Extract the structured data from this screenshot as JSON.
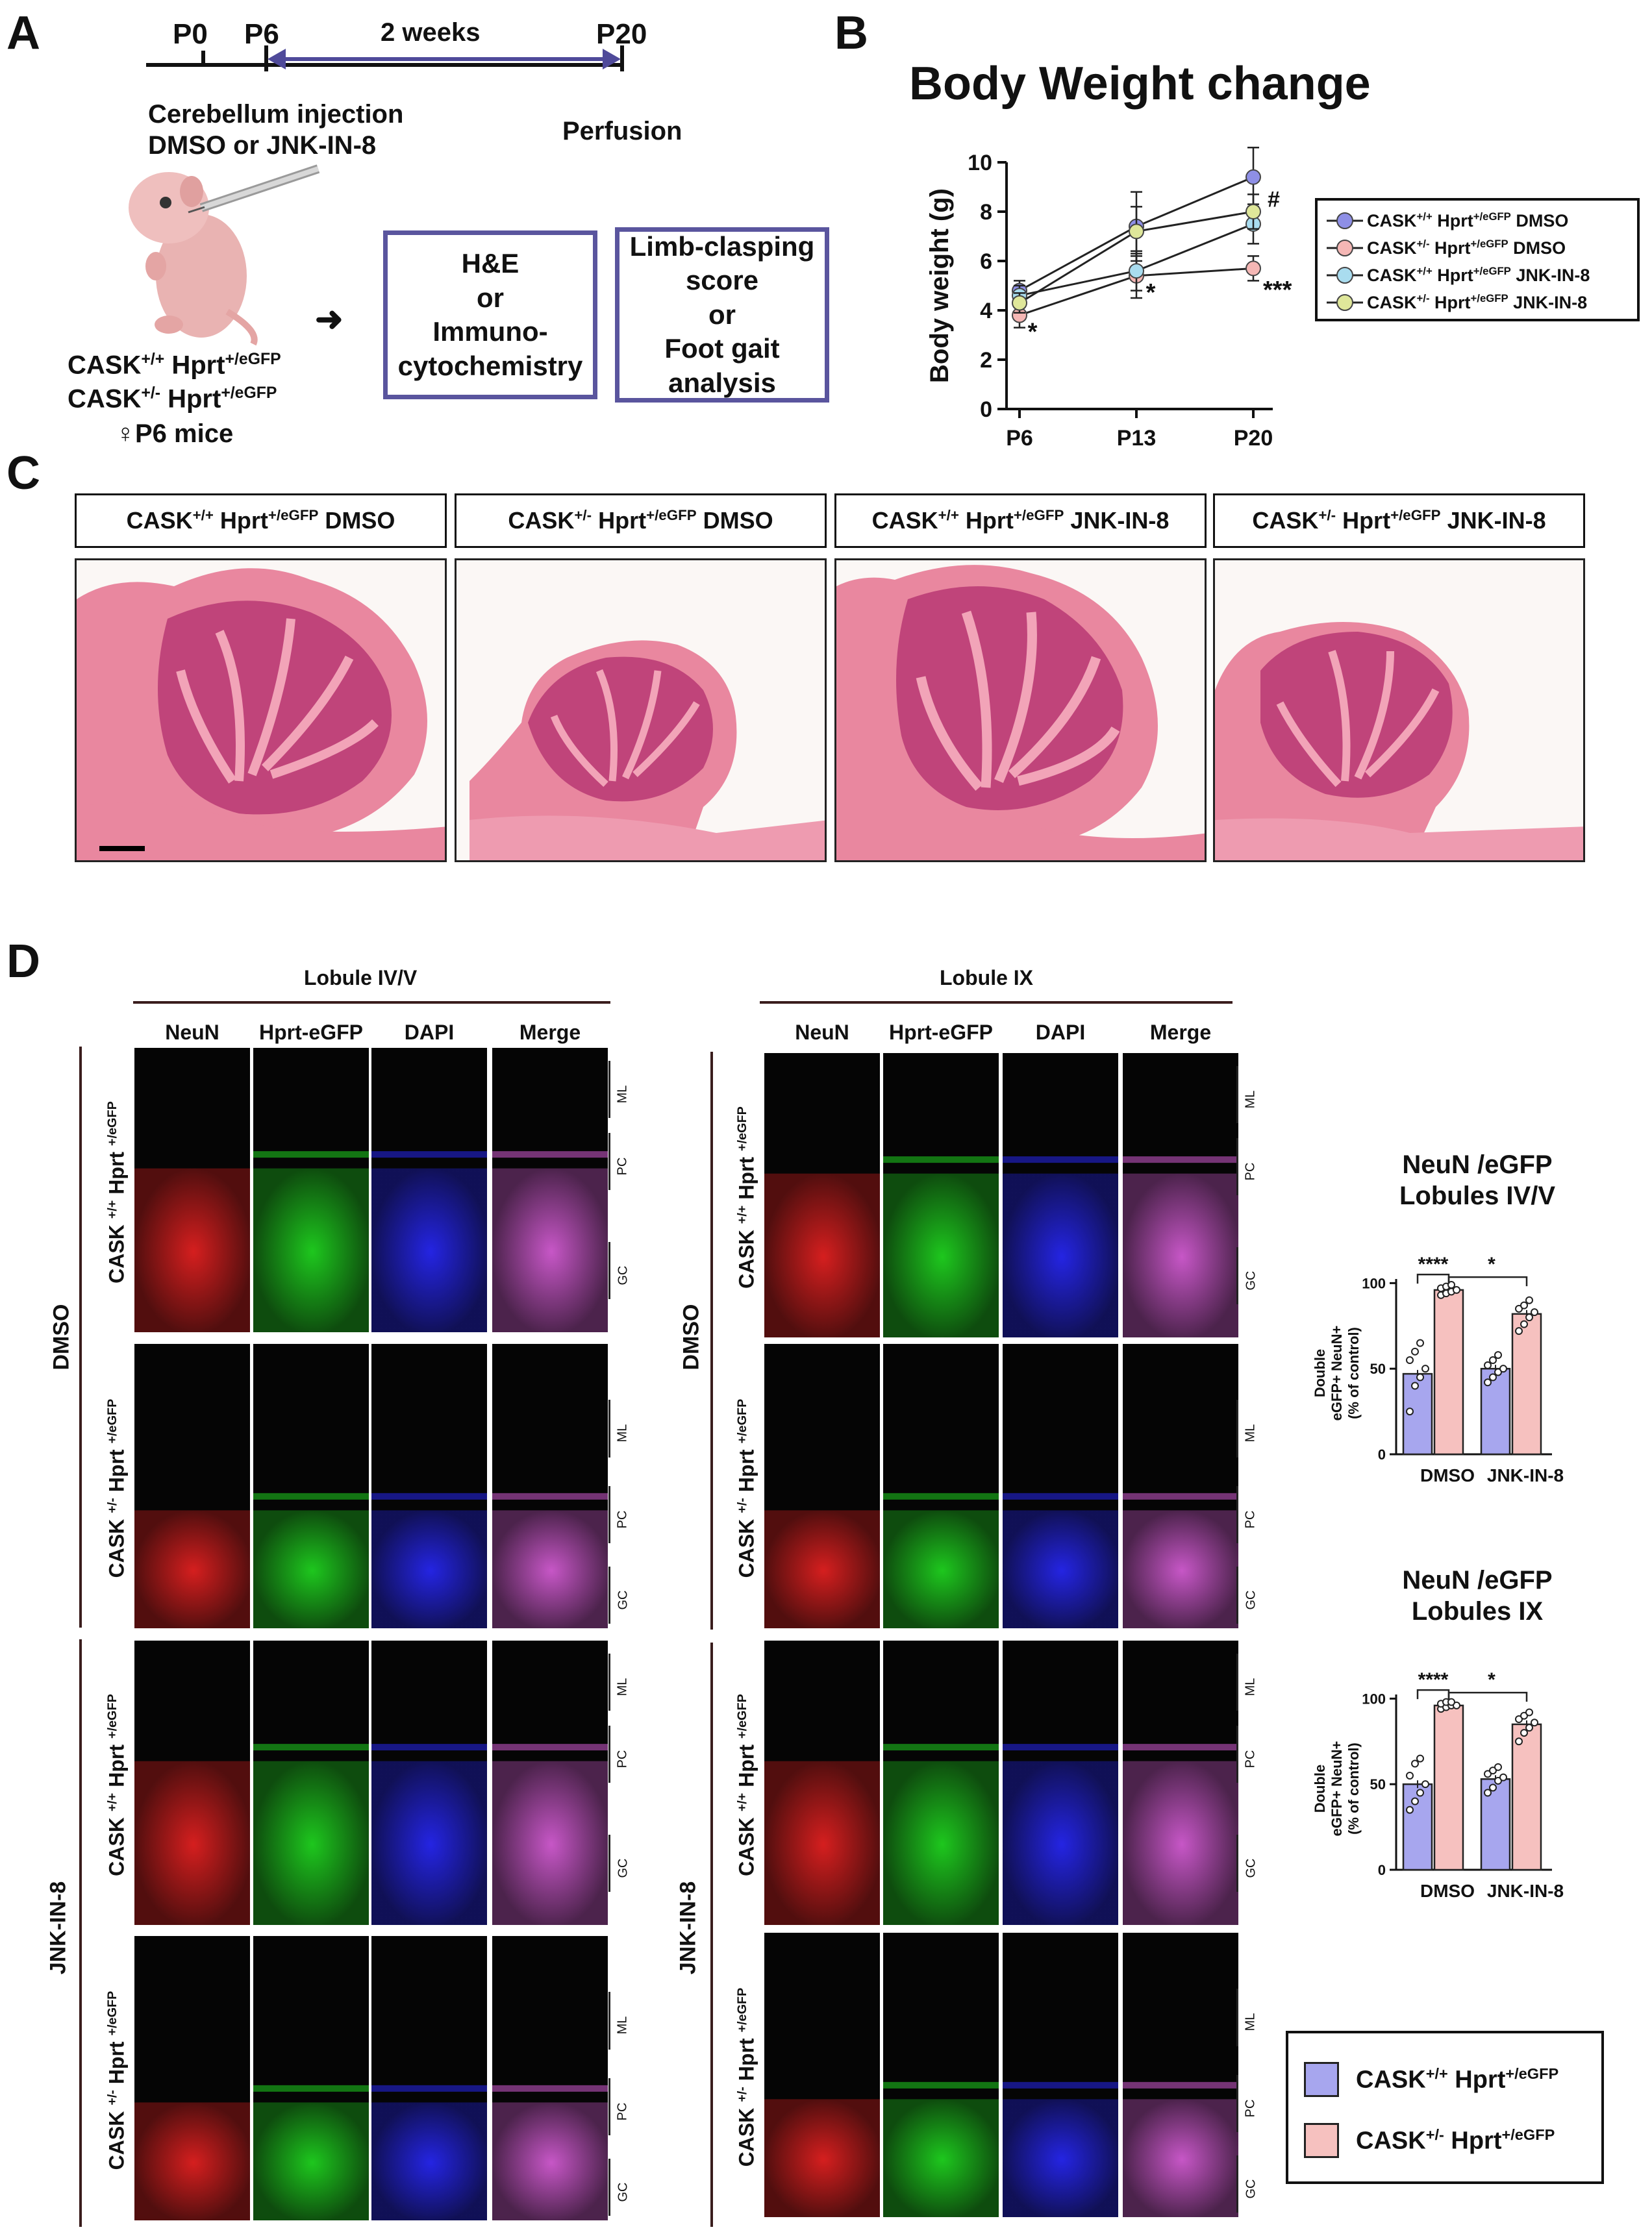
{
  "panels": {
    "a": "A",
    "b": "B",
    "c": "C",
    "d": "D"
  },
  "timeline": {
    "p0": "P0",
    "p6": "P6",
    "p20": "P20",
    "duration": "2 weeks",
    "injection_line1": "Cerebellum injection",
    "injection_line2": "DMSO or JNK-IN-8",
    "perfusion": "Perfusion"
  },
  "mice": {
    "geno1_base": "CASK",
    "geno1_sup": "+/+",
    "geno1_mid": " Hprt",
    "geno1_sup2": "+/eGFP",
    "geno2_base": "CASK",
    "geno2_sup": "+/-",
    "geno2_mid": " Hprt",
    "geno2_sup2": "+/eGFP",
    "cohort": "♀P6 mice"
  },
  "arrow": "➜",
  "box1": {
    "l1": "H&E",
    "l2": "or",
    "l3": "Immuno-",
    "l4": "cytochemistry"
  },
  "box2": {
    "l1": "Limb-clasping",
    "l2": "score",
    "l3": "or",
    "l4": "Foot gait",
    "l5": "analysis"
  },
  "weight_chart": {
    "title": "Body Weight change",
    "ylabel": "Body weight (g)",
    "yticks": [
      "0",
      "2",
      "4",
      "6",
      "8",
      "10"
    ],
    "xticks": [
      "P6",
      "P13",
      "P20"
    ],
    "stars": {
      "p6": "*",
      "p13": "*",
      "p20_a": "***",
      "p20_b": "#"
    }
  },
  "legend_b": [
    {
      "base": "CASK",
      "sup": "+/+",
      "mid": " Hprt",
      "sup2": "+/eGFP",
      "tail": " DMSO",
      "color": "#8e8fe6"
    },
    {
      "base": "CASK",
      "sup": "+/-",
      "mid": " Hprt",
      "sup2": "+/eGFP",
      "tail": " DMSO",
      "color": "#f5b7b5"
    },
    {
      "base": "CASK",
      "sup": "+/+",
      "mid": " Hprt",
      "sup2": "+/eGFP",
      "tail": " JNK-IN-8",
      "color": "#a9dcef"
    },
    {
      "base": "CASK",
      "sup": "+/-",
      "mid": " Hprt",
      "sup2": "+/eGFP",
      "tail": " JNK-IN-8",
      "color": "#dfe79a"
    }
  ],
  "he_headers": [
    {
      "base": "CASK",
      "sup": "+/+",
      "mid": " Hprt",
      "sup2": "+/eGFP",
      "tail": " DMSO"
    },
    {
      "base": "CASK",
      "sup": "+/-",
      "mid": " Hprt",
      "sup2": "+/eGFP",
      "tail": " DMSO"
    },
    {
      "base": "CASK",
      "sup": "+/+",
      "mid": " Hprt",
      "sup2": "+/eGFP",
      "tail": " JNK-IN-8"
    },
    {
      "base": "CASK",
      "sup": "+/-",
      "mid": " Hprt",
      "sup2": "+/eGFP",
      "tail": " JNK-IN-8"
    }
  ],
  "lobule_left": "Lobule IV/V",
  "lobule_right": "Lobule IX",
  "channels": [
    "NeuN",
    "Hprt-eGFP",
    "DAPI",
    "Merge"
  ],
  "groups": {
    "dmso": "DMSO",
    "jnk": "JNK-IN-8"
  },
  "row_labels": [
    {
      "base": "CASK ",
      "sup": "+/+",
      "mid": " Hprt ",
      "sup2": "+/eGFP"
    },
    {
      "base": "CASK ",
      "sup": "+/-",
      "mid": " Hprt ",
      "sup2": "+/eGFP"
    },
    {
      "base": "CASK ",
      "sup": "+/+",
      "mid": " Hprt ",
      "sup2": "+/eGFP"
    },
    {
      "base": "CASK ",
      "sup": "+/-",
      "mid": " Hprt ",
      "sup2": "+/eGFP"
    }
  ],
  "layers": {
    "ml": "ML",
    "pc": "PC",
    "gc": "GC"
  },
  "bar_chart_1": {
    "title_l1": "NeuN /eGFP",
    "title_l2": "Lobules IV/V",
    "ylabel_l1": "Double",
    "ylabel_l2": "eGFP+ NeuN+",
    "ylabel_l3": "(% of control)",
    "yticks": [
      "0",
      "50",
      "100"
    ],
    "categories": [
      "DMSO",
      "JNK-IN-8"
    ],
    "sig1": "****",
    "sig2": "*"
  },
  "bar_chart_2": {
    "title_l1": "NeuN /eGFP",
    "title_l2": "Lobules IX",
    "ylabel_l1": "Double",
    "ylabel_l2": "eGFP+ NeuN+",
    "ylabel_l3": "(% of control)",
    "yticks": [
      "0",
      "50",
      "100"
    ],
    "categories": [
      "DMSO",
      "JNK-IN-8"
    ],
    "sig1": "****",
    "sig2": "*"
  },
  "legend_d": [
    {
      "base": "CASK",
      "sup": "+/+",
      "mid": " Hprt",
      "sup2": "+/eGFP",
      "color": "#a7a6ee"
    },
    {
      "base": "CASK",
      "sup": "+/-",
      "mid": " Hprt",
      "sup2": "+/eGFP",
      "color": "#f6c1bf"
    }
  ],
  "chart_data": [
    {
      "type": "line",
      "title": "Body Weight change",
      "xlabel": "",
      "ylabel": "Body weight (g)",
      "categories": [
        "P6",
        "P13",
        "P20"
      ],
      "ylim": [
        0,
        10
      ],
      "series": [
        {
          "name": "CASK+/+ Hprt+/eGFP DMSO",
          "values": [
            4.8,
            7.4,
            9.4
          ],
          "err": [
            0.4,
            1.4,
            1.2
          ]
        },
        {
          "name": "CASK+/- Hprt+/eGFP DMSO",
          "values": [
            3.8,
            5.4,
            5.7
          ],
          "err": [
            0.5,
            0.9,
            0.5
          ]
        },
        {
          "name": "CASK+/+ Hprt+/eGFP JNK-IN-8",
          "values": [
            4.6,
            5.6,
            7.5
          ],
          "err": [
            0.4,
            0.8,
            0.8
          ]
        },
        {
          "name": "CASK+/- Hprt+/eGFP JNK-IN-8",
          "values": [
            4.3,
            7.2,
            8.0
          ],
          "err": [
            0.4,
            1.0,
            0.7
          ]
        }
      ]
    },
    {
      "type": "bar",
      "title": "NeuN /eGFP Lobules IV/V",
      "ylabel": "Double eGFP+ NeuN+ (% of control)",
      "categories": [
        "DMSO",
        "JNK-IN-8"
      ],
      "ylim": [
        0,
        110
      ],
      "series": [
        {
          "name": "CASK+/+ Hprt+/eGFP",
          "values": [
            47,
            50
          ],
          "points": [
            [
              25,
              40,
              45,
              50,
              55,
              60,
              65
            ],
            [
              42,
              45,
              48,
              50,
              52,
              55,
              58
            ]
          ]
        },
        {
          "name": "CASK+/- Hprt+/eGFP",
          "values": [
            96,
            82
          ],
          "points": [
            [
              93,
              94,
              95,
              96,
              97,
              98,
              99
            ],
            [
              72,
              76,
              80,
              83,
              85,
              87,
              90
            ]
          ]
        }
      ]
    },
    {
      "type": "bar",
      "title": "NeuN /eGFP Lobules IX",
      "ylabel": "Double eGFP+ NeuN+ (% of control)",
      "categories": [
        "DMSO",
        "JNK-IN-8"
      ],
      "ylim": [
        0,
        110
      ],
      "series": [
        {
          "name": "CASK+/+ Hprt+/eGFP",
          "values": [
            50,
            53
          ],
          "points": [
            [
              35,
              40,
              45,
              50,
              55,
              62,
              65
            ],
            [
              45,
              48,
              52,
              54,
              56,
              58,
              60
            ]
          ]
        },
        {
          "name": "CASK+/- Hprt+/eGFP",
          "values": [
            96,
            85
          ],
          "points": [
            [
              94,
              95,
              96,
              96,
              97,
              98,
              98
            ],
            [
              75,
              80,
              83,
              86,
              88,
              90,
              92
            ]
          ]
        }
      ]
    }
  ]
}
